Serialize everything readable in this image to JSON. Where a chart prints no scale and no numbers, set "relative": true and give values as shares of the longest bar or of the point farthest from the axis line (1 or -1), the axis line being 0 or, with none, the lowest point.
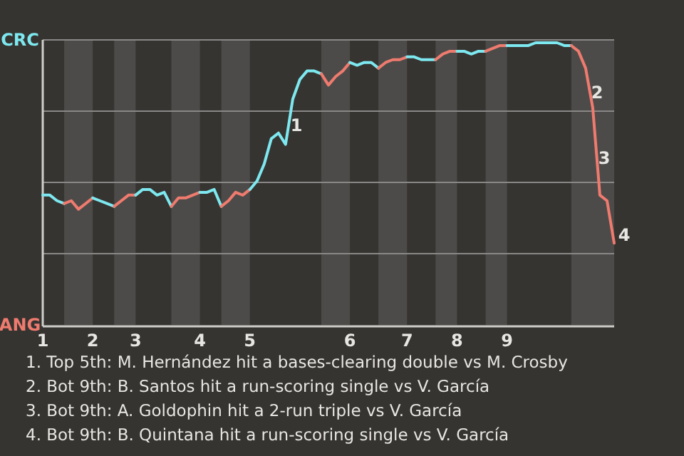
{
  "chart_data": {
    "type": "line",
    "relative": true,
    "categories": [
      "1",
      null,
      null,
      null,
      null,
      null,
      null,
      "2",
      null,
      null,
      null,
      null,
      null,
      "3",
      null,
      null,
      null,
      null,
      null,
      null,
      null,
      null,
      "4",
      null,
      null,
      null,
      null,
      null,
      null,
      "5",
      null,
      null,
      null,
      null,
      null,
      null,
      null,
      null,
      null,
      null,
      null,
      null,
      null,
      "6",
      null,
      null,
      null,
      null,
      null,
      null,
      null,
      "7",
      null,
      null,
      null,
      null,
      null,
      null,
      "8",
      null,
      null,
      null,
      null,
      null,
      null,
      "9",
      null,
      null,
      null,
      null,
      null,
      null,
      null,
      null,
      null,
      null,
      null,
      null,
      null,
      null,
      null
    ],
    "grid": "y",
    "marker": "none",
    "line_style": "solid",
    "series": [
      {
        "color": "#7de8ef",
        "values": [
          0.46,
          0.46,
          0.44,
          0.43,
          null,
          null,
          null,
          null,
          null,
          null,
          null,
          null,
          null,
          null,
          null,
          null,
          null,
          null,
          null,
          null,
          null,
          null,
          null,
          null,
          null,
          null,
          null,
          null,
          null,
          null,
          null,
          null,
          null,
          null,
          null,
          null,
          null,
          null,
          null,
          null,
          null,
          null,
          null,
          null,
          null,
          null,
          null,
          null,
          null,
          null,
          null,
          null,
          null,
          null,
          null,
          null,
          null,
          null,
          null,
          null,
          null,
          null,
          null,
          null,
          null,
          null,
          null,
          null,
          null,
          null,
          null,
          null,
          null,
          null,
          null,
          null,
          null,
          null,
          null,
          null,
          null
        ]
      },
      {
        "color": "#ef7b6f",
        "values": [
          null,
          null,
          null,
          0.43,
          0.44,
          0.41,
          0.43,
          0.45,
          null,
          null,
          null,
          null,
          null,
          null,
          null,
          null,
          null,
          null,
          null,
          null,
          null,
          null,
          null,
          null,
          null,
          null,
          null,
          null,
          null,
          null,
          null,
          null,
          null,
          null,
          null,
          null,
          null,
          null,
          null,
          null,
          null,
          null,
          null,
          null,
          null,
          null,
          null,
          null,
          null,
          null,
          null,
          null,
          null,
          null,
          null,
          null,
          null,
          null,
          null,
          null,
          null,
          null,
          null,
          null,
          null,
          null,
          null,
          null,
          null,
          null,
          null,
          null,
          null,
          null,
          null,
          null,
          null,
          null,
          null,
          null,
          null
        ]
      },
      {
        "color": "#7de8ef",
        "values": [
          null,
          null,
          null,
          null,
          null,
          null,
          null,
          0.45,
          0.44,
          0.43,
          0.42,
          null,
          null,
          null,
          null,
          null,
          null,
          null,
          null,
          null,
          null,
          null,
          null,
          null,
          null,
          null,
          null,
          null,
          null,
          null,
          null,
          null,
          null,
          null,
          null,
          null,
          null,
          null,
          null,
          null,
          null,
          null,
          null,
          null,
          null,
          null,
          null,
          null,
          null,
          null,
          null,
          null,
          null,
          null,
          null,
          null,
          null,
          null,
          null,
          null,
          null,
          null,
          null,
          null,
          null,
          null,
          null,
          null,
          null,
          null,
          null,
          null,
          null,
          null,
          null,
          null,
          null,
          null,
          null,
          null,
          null
        ]
      },
      {
        "color": "#ef7b6f",
        "values": [
          null,
          null,
          null,
          null,
          null,
          null,
          null,
          null,
          null,
          null,
          0.42,
          0.44,
          0.46,
          0.46,
          null,
          null,
          null,
          null,
          null,
          null,
          null,
          null,
          null,
          null,
          null,
          null,
          null,
          null,
          null,
          null,
          null,
          null,
          null,
          null,
          null,
          null,
          null,
          null,
          null,
          null,
          null,
          null,
          null,
          null,
          null,
          null,
          null,
          null,
          null,
          null,
          null,
          null,
          null,
          null,
          null,
          null,
          null,
          null,
          null,
          null,
          null,
          null,
          null,
          null,
          null,
          null,
          null,
          null,
          null,
          null,
          null,
          null,
          null,
          null,
          null,
          null,
          null,
          null,
          null,
          null,
          null
        ]
      },
      {
        "color": "#7de8ef",
        "values": [
          null,
          null,
          null,
          null,
          null,
          null,
          null,
          null,
          null,
          null,
          null,
          null,
          null,
          0.46,
          0.48,
          0.48,
          0.46,
          0.47,
          0.42,
          null,
          null,
          null,
          null,
          null,
          null,
          null,
          null,
          null,
          null,
          null,
          null,
          null,
          null,
          null,
          null,
          null,
          null,
          null,
          null,
          null,
          null,
          null,
          null,
          null,
          null,
          null,
          null,
          null,
          null,
          null,
          null,
          null,
          null,
          null,
          null,
          null,
          null,
          null,
          null,
          null,
          null,
          null,
          null,
          null,
          null,
          null,
          null,
          null,
          null,
          null,
          null,
          null,
          null,
          null,
          null,
          null,
          null,
          null,
          null,
          null,
          null
        ]
      },
      {
        "color": "#ef7b6f",
        "values": [
          null,
          null,
          null,
          null,
          null,
          null,
          null,
          null,
          null,
          null,
          null,
          null,
          null,
          null,
          null,
          null,
          null,
          null,
          0.42,
          0.45,
          0.45,
          0.46,
          0.47,
          null,
          null,
          null,
          null,
          null,
          null,
          null,
          null,
          null,
          null,
          null,
          null,
          null,
          null,
          null,
          null,
          null,
          null,
          null,
          null,
          null,
          null,
          null,
          null,
          null,
          null,
          null,
          null,
          null,
          null,
          null,
          null,
          null,
          null,
          null,
          null,
          null,
          null,
          null,
          null,
          null,
          null,
          null,
          null,
          null,
          null,
          null,
          null,
          null,
          null,
          null,
          null,
          null,
          null,
          null,
          null,
          null,
          null
        ]
      },
      {
        "color": "#7de8ef",
        "values": [
          null,
          null,
          null,
          null,
          null,
          null,
          null,
          null,
          null,
          null,
          null,
          null,
          null,
          null,
          null,
          null,
          null,
          null,
          null,
          null,
          null,
          null,
          0.47,
          0.47,
          0.48,
          0.42,
          null,
          null,
          null,
          null,
          null,
          null,
          null,
          null,
          null,
          null,
          null,
          null,
          null,
          null,
          null,
          null,
          null,
          null,
          null,
          null,
          null,
          null,
          null,
          null,
          null,
          null,
          null,
          null,
          null,
          null,
          null,
          null,
          null,
          null,
          null,
          null,
          null,
          null,
          null,
          null,
          null,
          null,
          null,
          null,
          null,
          null,
          null,
          null,
          null,
          null,
          null,
          null,
          null,
          null,
          null
        ]
      },
      {
        "color": "#ef7b6f",
        "values": [
          null,
          null,
          null,
          null,
          null,
          null,
          null,
          null,
          null,
          null,
          null,
          null,
          null,
          null,
          null,
          null,
          null,
          null,
          null,
          null,
          null,
          null,
          null,
          null,
          null,
          0.42,
          0.44,
          0.47,
          0.46,
          0.48,
          null,
          null,
          null,
          null,
          null,
          null,
          null,
          null,
          null,
          null,
          null,
          null,
          null,
          null,
          null,
          null,
          null,
          null,
          null,
          null,
          null,
          null,
          null,
          null,
          null,
          null,
          null,
          null,
          null,
          null,
          null,
          null,
          null,
          null,
          null,
          null,
          null,
          null,
          null,
          null,
          null,
          null,
          null,
          null,
          null,
          null,
          null,
          null,
          null,
          null,
          null
        ]
      },
      {
        "color": "#7de8ef",
        "values": [
          null,
          null,
          null,
          null,
          null,
          null,
          null,
          null,
          null,
          null,
          null,
          null,
          null,
          null,
          null,
          null,
          null,
          null,
          null,
          null,
          null,
          null,
          null,
          null,
          null,
          null,
          null,
          null,
          null,
          0.48,
          0.51,
          0.57,
          0.66,
          0.68,
          0.64,
          0.8,
          0.87,
          0.9,
          0.9,
          0.89,
          null,
          null,
          null,
          null,
          null,
          null,
          null,
          null,
          null,
          null,
          null,
          null,
          null,
          null,
          null,
          null,
          null,
          null,
          null,
          null,
          null,
          null,
          null,
          null,
          null,
          null,
          null,
          null,
          null,
          null,
          null,
          null,
          null,
          null,
          null,
          null,
          null,
          null,
          null,
          null,
          null
        ]
      },
      {
        "color": "#ef7b6f",
        "values": [
          null,
          null,
          null,
          null,
          null,
          null,
          null,
          null,
          null,
          null,
          null,
          null,
          null,
          null,
          null,
          null,
          null,
          null,
          null,
          null,
          null,
          null,
          null,
          null,
          null,
          null,
          null,
          null,
          null,
          null,
          null,
          null,
          null,
          null,
          null,
          null,
          null,
          null,
          null,
          0.89,
          0.85,
          0.88,
          0.9,
          0.93,
          null,
          null,
          null,
          null,
          null,
          null,
          null,
          null,
          null,
          null,
          null,
          null,
          null,
          null,
          null,
          null,
          null,
          null,
          null,
          null,
          null,
          null,
          null,
          null,
          null,
          null,
          null,
          null,
          null,
          null,
          null,
          null,
          null,
          null,
          null,
          null,
          null
        ]
      },
      {
        "color": "#7de8ef",
        "values": [
          null,
          null,
          null,
          null,
          null,
          null,
          null,
          null,
          null,
          null,
          null,
          null,
          null,
          null,
          null,
          null,
          null,
          null,
          null,
          null,
          null,
          null,
          null,
          null,
          null,
          null,
          null,
          null,
          null,
          null,
          null,
          null,
          null,
          null,
          null,
          null,
          null,
          null,
          null,
          null,
          null,
          null,
          null,
          0.93,
          0.92,
          0.93,
          0.93,
          0.91,
          null,
          null,
          null,
          null,
          null,
          null,
          null,
          null,
          null,
          null,
          null,
          null,
          null,
          null,
          null,
          null,
          null,
          null,
          null,
          null,
          null,
          null,
          null,
          null,
          null,
          null,
          null,
          null,
          null,
          null,
          null,
          null,
          null
        ]
      },
      {
        "color": "#ef7b6f",
        "values": [
          null,
          null,
          null,
          null,
          null,
          null,
          null,
          null,
          null,
          null,
          null,
          null,
          null,
          null,
          null,
          null,
          null,
          null,
          null,
          null,
          null,
          null,
          null,
          null,
          null,
          null,
          null,
          null,
          null,
          null,
          null,
          null,
          null,
          null,
          null,
          null,
          null,
          null,
          null,
          null,
          null,
          null,
          null,
          null,
          null,
          null,
          null,
          0.91,
          0.93,
          0.94,
          0.94,
          0.95,
          null,
          null,
          null,
          null,
          null,
          null,
          null,
          null,
          null,
          null,
          null,
          null,
          null,
          null,
          null,
          null,
          null,
          null,
          null,
          null,
          null,
          null,
          null,
          null,
          null,
          null,
          null,
          null,
          null
        ]
      },
      {
        "color": "#7de8ef",
        "values": [
          null,
          null,
          null,
          null,
          null,
          null,
          null,
          null,
          null,
          null,
          null,
          null,
          null,
          null,
          null,
          null,
          null,
          null,
          null,
          null,
          null,
          null,
          null,
          null,
          null,
          null,
          null,
          null,
          null,
          null,
          null,
          null,
          null,
          null,
          null,
          null,
          null,
          null,
          null,
          null,
          null,
          null,
          null,
          null,
          null,
          null,
          null,
          null,
          null,
          null,
          null,
          0.95,
          0.95,
          0.94,
          0.94,
          0.94,
          null,
          null,
          null,
          null,
          null,
          null,
          null,
          null,
          null,
          null,
          null,
          null,
          null,
          null,
          null,
          null,
          null,
          null,
          null,
          null,
          null,
          null,
          null,
          null,
          null
        ]
      },
      {
        "color": "#ef7b6f",
        "values": [
          null,
          null,
          null,
          null,
          null,
          null,
          null,
          null,
          null,
          null,
          null,
          null,
          null,
          null,
          null,
          null,
          null,
          null,
          null,
          null,
          null,
          null,
          null,
          null,
          null,
          null,
          null,
          null,
          null,
          null,
          null,
          null,
          null,
          null,
          null,
          null,
          null,
          null,
          null,
          null,
          null,
          null,
          null,
          null,
          null,
          null,
          null,
          null,
          null,
          null,
          null,
          null,
          null,
          null,
          null,
          0.94,
          0.96,
          0.97,
          0.97,
          null,
          null,
          null,
          null,
          null,
          null,
          null,
          null,
          null,
          null,
          null,
          null,
          null,
          null,
          null,
          null,
          null,
          null,
          null,
          null,
          null,
          null
        ]
      },
      {
        "color": "#7de8ef",
        "values": [
          null,
          null,
          null,
          null,
          null,
          null,
          null,
          null,
          null,
          null,
          null,
          null,
          null,
          null,
          null,
          null,
          null,
          null,
          null,
          null,
          null,
          null,
          null,
          null,
          null,
          null,
          null,
          null,
          null,
          null,
          null,
          null,
          null,
          null,
          null,
          null,
          null,
          null,
          null,
          null,
          null,
          null,
          null,
          null,
          null,
          null,
          null,
          null,
          null,
          null,
          null,
          null,
          null,
          null,
          null,
          null,
          null,
          null,
          0.97,
          0.97,
          0.96,
          0.97,
          0.97,
          null,
          null,
          null,
          null,
          null,
          null,
          null,
          null,
          null,
          null,
          null,
          null,
          null,
          null,
          null,
          null,
          null,
          null
        ]
      },
      {
        "color": "#ef7b6f",
        "values": [
          null,
          null,
          null,
          null,
          null,
          null,
          null,
          null,
          null,
          null,
          null,
          null,
          null,
          null,
          null,
          null,
          null,
          null,
          null,
          null,
          null,
          null,
          null,
          null,
          null,
          null,
          null,
          null,
          null,
          null,
          null,
          null,
          null,
          null,
          null,
          null,
          null,
          null,
          null,
          null,
          null,
          null,
          null,
          null,
          null,
          null,
          null,
          null,
          null,
          null,
          null,
          null,
          null,
          null,
          null,
          null,
          null,
          null,
          null,
          null,
          null,
          null,
          0.97,
          0.98,
          0.99,
          0.99,
          null,
          null,
          null,
          null,
          null,
          null,
          null,
          null,
          null,
          null,
          null,
          null,
          null,
          null,
          null
        ]
      },
      {
        "color": "#7de8ef",
        "values": [
          null,
          null,
          null,
          null,
          null,
          null,
          null,
          null,
          null,
          null,
          null,
          null,
          null,
          null,
          null,
          null,
          null,
          null,
          null,
          null,
          null,
          null,
          null,
          null,
          null,
          null,
          null,
          null,
          null,
          null,
          null,
          null,
          null,
          null,
          null,
          null,
          null,
          null,
          null,
          null,
          null,
          null,
          null,
          null,
          null,
          null,
          null,
          null,
          null,
          null,
          null,
          null,
          null,
          null,
          null,
          null,
          null,
          null,
          null,
          null,
          null,
          null,
          null,
          null,
          null,
          0.99,
          0.99,
          0.99,
          0.99,
          1,
          1,
          1,
          1,
          0.99,
          0.99,
          null,
          null,
          null,
          null,
          null,
          null
        ]
      },
      {
        "color": "#ef7b6f",
        "values": [
          null,
          null,
          null,
          null,
          null,
          null,
          null,
          null,
          null,
          null,
          null,
          null,
          null,
          null,
          null,
          null,
          null,
          null,
          null,
          null,
          null,
          null,
          null,
          null,
          null,
          null,
          null,
          null,
          null,
          null,
          null,
          null,
          null,
          null,
          null,
          null,
          null,
          null,
          null,
          null,
          null,
          null,
          null,
          null,
          null,
          null,
          null,
          null,
          null,
          null,
          null,
          null,
          null,
          null,
          null,
          null,
          null,
          null,
          null,
          null,
          null,
          null,
          null,
          null,
          null,
          null,
          null,
          null,
          null,
          null,
          null,
          null,
          null,
          null,
          0.99,
          0.97,
          0.91,
          0.77,
          0.46,
          0.44,
          0.29
        ]
      }
    ],
    "annotations": [
      "CRC",
      "ANG",
      "1",
      "2",
      "3",
      "4",
      "1. Top 5th: M. Hernández hit a bases-clearing double vs M. Crosby",
      "2. Bot 9th: B. Santos hit a run-scoring single vs V. García",
      "3. Bot 9th: A. Goldophin hit a 2-run triple vs V. García",
      "4. Bot 9th: B. Quintana hit a run-scoring single vs V. García"
    ]
  }
}
